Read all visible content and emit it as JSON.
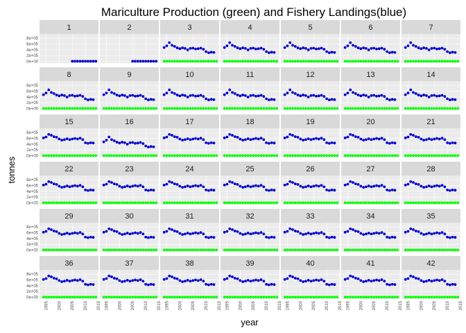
{
  "chart_data": {
    "type": "scatter",
    "title": "Mariculture Production (green) and Fishery Landings(blue)",
    "xlabel": "year",
    "ylabel": "tonnes",
    "xlim": [
      1992.5,
      2015
    ],
    "ylim": [
      -60000,
      950000
    ],
    "x_ticks": [
      1995,
      2000,
      2005,
      2010,
      2015
    ],
    "x_tick_labels": [
      "1995",
      "2000",
      "2005",
      "2010",
      "2015"
    ],
    "y_ticks": [
      0,
      200000,
      400000,
      600000,
      800000
    ],
    "y_tick_labels": [
      "0e+00",
      "2e+05",
      "4e+05",
      "6e+05",
      "8e+05"
    ],
    "grid": true,
    "colors": {
      "mariculture": "#00ff00",
      "landings": "#0000cc",
      "panel_bg": "#ebebeb",
      "strip_bg": "#d9d9d9",
      "grid": "#ffffff"
    },
    "facets": [
      "1",
      "2",
      "3",
      "4",
      "5",
      "6",
      "7",
      "8",
      "9",
      "10",
      "11",
      "12",
      "13",
      "14",
      "15",
      "16",
      "17",
      "18",
      "19",
      "20",
      "21",
      "22",
      "23",
      "24",
      "25",
      "26",
      "27",
      "28",
      "29",
      "30",
      "31",
      "32",
      "33",
      "34",
      "35",
      "36",
      "37",
      "38",
      "39",
      "40",
      "41",
      "42"
    ],
    "years": [
      1994,
      1995,
      1996,
      1997,
      1998,
      1999,
      2000,
      2001,
      2002,
      2003,
      2004,
      2005,
      2006,
      2007,
      2008,
      2009,
      2010,
      2011,
      2012,
      2013,
      2014
    ],
    "mariculture_values": [
      5000,
      5000,
      5000,
      5000,
      5000,
      5000,
      5000,
      5000,
      5000,
      5000,
      5000,
      5000,
      5000,
      5000,
      5000,
      5000,
      5000,
      5000,
      5000,
      5000,
      5000
    ],
    "landings_profiles": {
      "a": [
        480000,
        540000,
        650000,
        560000,
        520000,
        470000,
        440000,
        470000,
        450000,
        400000,
        450000,
        460000,
        430000,
        440000,
        460000,
        420000,
        340000,
        300000,
        320000,
        310000,
        null
      ],
      "b": [
        620000,
        650000,
        740000,
        710000,
        660000,
        640000,
        580000,
        540000,
        560000,
        590000,
        560000,
        580000,
        600000,
        580000,
        610000,
        560000,
        450000,
        430000,
        450000,
        440000,
        null
      ]
    },
    "facet_profiles": [
      "sparse",
      "sparse",
      "a",
      "a",
      "a",
      "a",
      "a",
      "a",
      "a",
      "a",
      "a",
      "a",
      "a",
      "a",
      "b",
      "a",
      "b",
      "b",
      "b",
      "b",
      "b",
      "b",
      "b",
      "b",
      "b",
      "b",
      "b",
      "b",
      "b",
      "b",
      "b",
      "b",
      "b",
      "b",
      "b",
      "b",
      "b",
      "b",
      "b",
      "b",
      "b",
      "b"
    ],
    "sparse_years": [
      2005,
      2006,
      2007,
      2008,
      2009,
      2010,
      2011,
      2012,
      2013,
      2014
    ]
  }
}
